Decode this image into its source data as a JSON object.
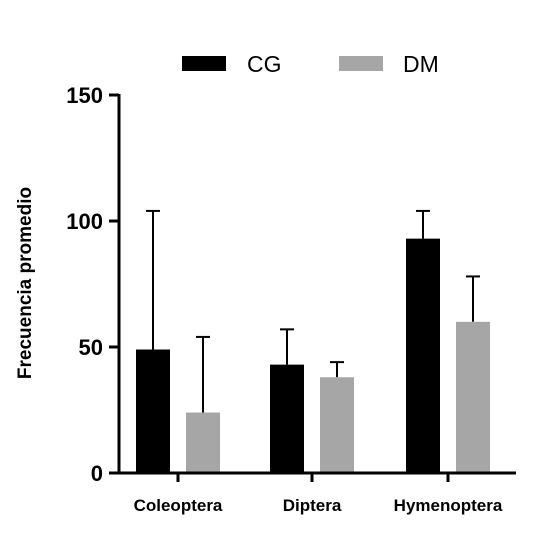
{
  "chart_data": {
    "type": "bar",
    "categories": [
      "Coleoptera",
      "Diptera",
      "Hymenoptera"
    ],
    "series": [
      {
        "name": "CG",
        "color": "#000000",
        "values": [
          49,
          43,
          93
        ],
        "error": [
          55,
          14,
          11
        ]
      },
      {
        "name": "DM",
        "color": "#a6a6a6",
        "values": [
          24,
          38,
          60
        ],
        "error": [
          30,
          6,
          18
        ]
      }
    ],
    "ylabel": "Frecuencia promedio",
    "xlabel": "",
    "ylim": [
      0,
      150
    ],
    "yticks": [
      0,
      50,
      100,
      150
    ],
    "legend": "top",
    "grid": false
  }
}
